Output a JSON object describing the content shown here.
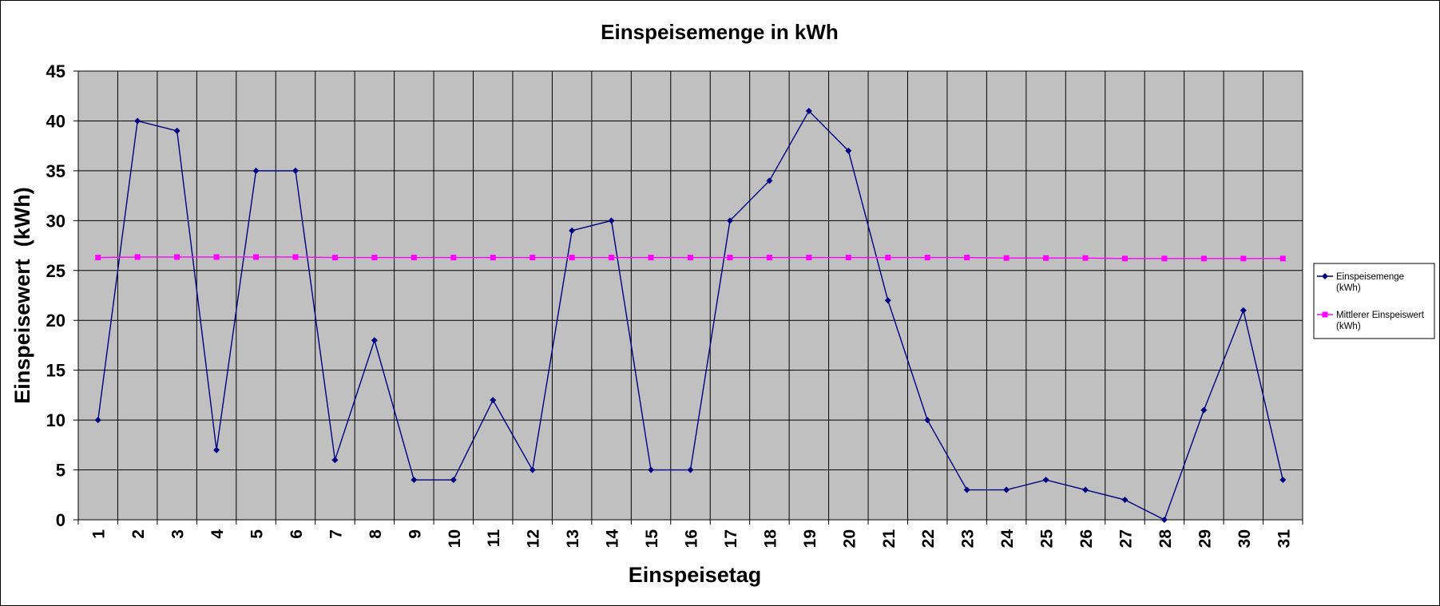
{
  "chart_data": {
    "type": "line",
    "title": "Einspeisemenge in kWh",
    "xlabel": "Einspeisetag",
    "ylabel": "Einspeisewert  (kWh)",
    "categories": [
      "1",
      "2",
      "3",
      "4",
      "5",
      "6",
      "7",
      "8",
      "9",
      "10",
      "11",
      "12",
      "13",
      "14",
      "15",
      "16",
      "17",
      "18",
      "19",
      "20",
      "21",
      "22",
      "23",
      "24",
      "25",
      "26",
      "27",
      "28",
      "29",
      "30",
      "31"
    ],
    "ylim": [
      0,
      45
    ],
    "yticks": [
      "0",
      "5",
      "10",
      "15",
      "20",
      "25",
      "30",
      "35",
      "40",
      "45"
    ],
    "grid": true,
    "legend_position": "right",
    "series": [
      {
        "name": "Einspeisemenge",
        "unit": "(kWh)",
        "color": "#000080",
        "marker": "diamond",
        "values": [
          10,
          40,
          39,
          7,
          35,
          35,
          6,
          18,
          4,
          4,
          12,
          5,
          29,
          30,
          5,
          5,
          30,
          34,
          41,
          37,
          22,
          10,
          3,
          3,
          4,
          3,
          2,
          0,
          11,
          21,
          4
        ]
      },
      {
        "name": "Mittlerer Einspeiswert",
        "unit": "(kWh)",
        "color": "#ff00ff",
        "marker": "square",
        "values": [
          26.3,
          26.35,
          26.35,
          26.35,
          26.35,
          26.35,
          26.3,
          26.3,
          26.3,
          26.3,
          26.3,
          26.3,
          26.3,
          26.3,
          26.3,
          26.3,
          26.3,
          26.3,
          26.3,
          26.3,
          26.3,
          26.3,
          26.3,
          26.25,
          26.25,
          26.25,
          26.2,
          26.2,
          26.2,
          26.2,
          26.2
        ]
      }
    ],
    "plot_background": "#c0c0c0"
  }
}
